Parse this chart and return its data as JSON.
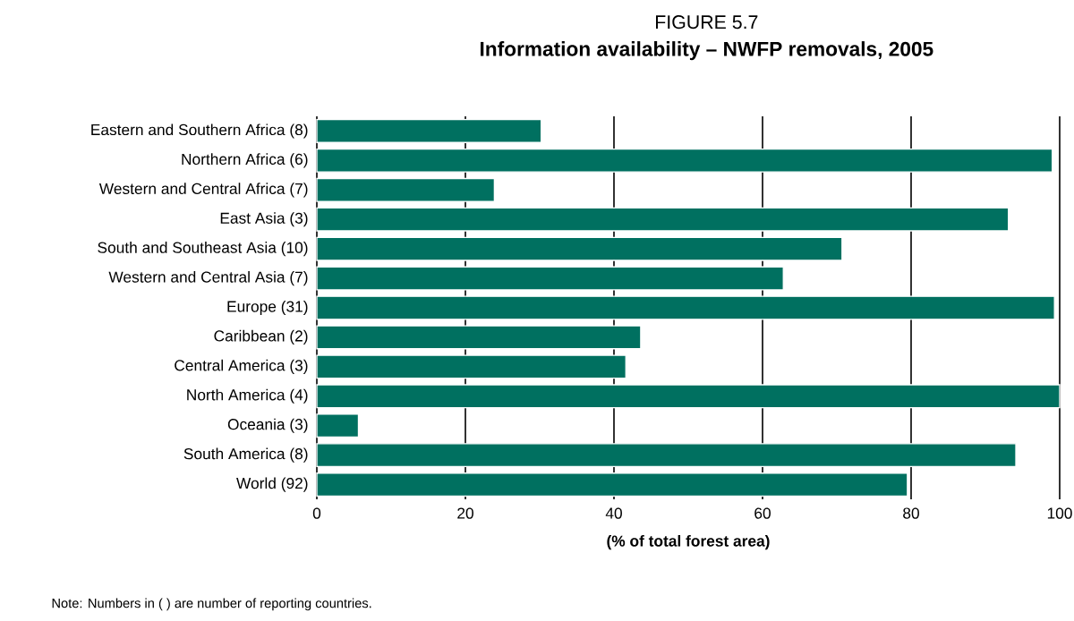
{
  "chart_data": {
    "type": "bar",
    "orientation": "horizontal",
    "title": "FIGURE 5.7",
    "subtitle": "Information availability – NWFP removals, 2005",
    "xlabel": "(% of total forest area)",
    "categories": [
      "Eastern and Southern Africa (8)",
      "Northern Africa (6)",
      "Western and Central Africa (7)",
      "East Asia (3)",
      "South and Southeast Asia (10)",
      "Western and Central Asia (7)",
      "Europe (31)",
      "Caribbean (2)",
      "Central America (3)",
      "North America (4)",
      "Oceania (3)",
      "South America (8)",
      "World (92)"
    ],
    "values": [
      30.2,
      99.0,
      23.9,
      93.1,
      70.7,
      62.8,
      99.3,
      43.6,
      41.6,
      100,
      5.6,
      94.1,
      79.5
    ],
    "color": "#007060",
    "xlim": [
      0,
      100
    ],
    "xticks": [
      0,
      20,
      40,
      60,
      80,
      100
    ],
    "grid": "x",
    "annotations": [
      "Note: Numbers in ( ) are number of reporting countries."
    ]
  }
}
